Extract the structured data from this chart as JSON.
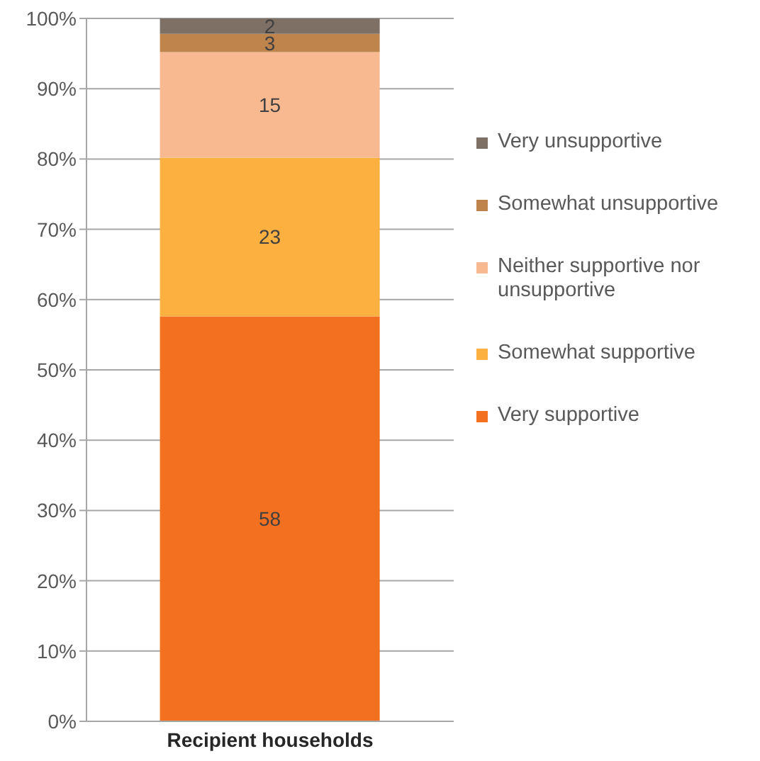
{
  "chart_data": {
    "type": "bar",
    "categories": [
      "Recipient households"
    ],
    "stacked": true,
    "series": [
      {
        "name": "Very supportive",
        "color": "#f37021",
        "values": [
          57.6
        ],
        "value_labels": [
          "58"
        ]
      },
      {
        "name": "Somewhat supportive",
        "color": "#fbb040",
        "values": [
          22.6
        ],
        "value_labels": [
          "23"
        ]
      },
      {
        "name": "Neither supportive nor unsupportive",
        "color": "#f8b890",
        "values": [
          15.0
        ],
        "value_labels": [
          "15"
        ]
      },
      {
        "name": "Somewhat unsupportive",
        "color": "#bf834c",
        "values": [
          2.6
        ],
        "value_labels": [
          "3"
        ]
      },
      {
        "name": "Very unsupportive",
        "color": "#7f7065",
        "values": [
          2.2
        ],
        "value_labels": [
          "2"
        ]
      }
    ],
    "ylim": [
      0,
      100
    ],
    "yticks": [
      {
        "value": 0,
        "label": "0%"
      },
      {
        "value": 10,
        "label": "10%"
      },
      {
        "value": 20,
        "label": "20%"
      },
      {
        "value": 30,
        "label": "30%"
      },
      {
        "value": 40,
        "label": "40%"
      },
      {
        "value": 50,
        "label": "50%"
      },
      {
        "value": 60,
        "label": "60%"
      },
      {
        "value": 70,
        "label": "70%"
      },
      {
        "value": 80,
        "label": "80%"
      },
      {
        "value": 90,
        "label": "90%"
      },
      {
        "value": 100,
        "label": "100%"
      }
    ],
    "grid": "y",
    "legend": "right"
  }
}
